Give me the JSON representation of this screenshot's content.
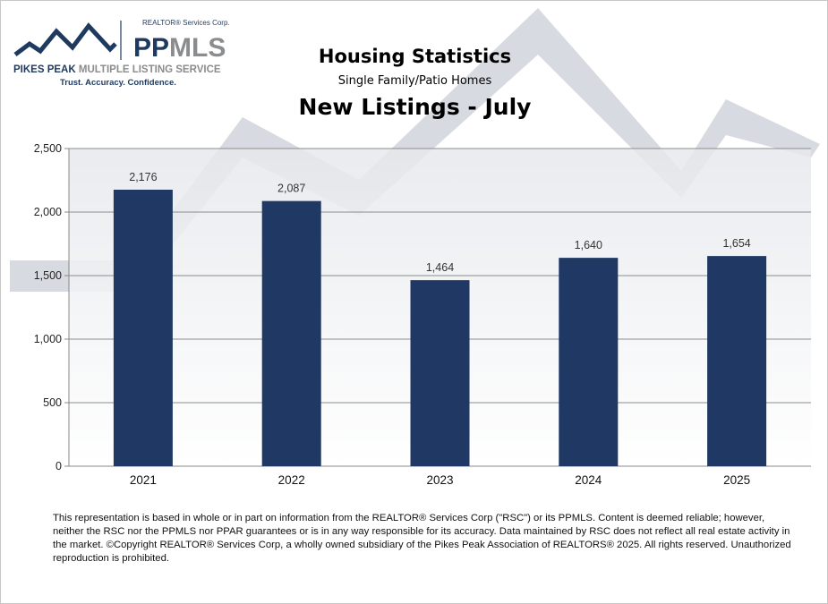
{
  "logo": {
    "brand": "PPMLS",
    "top_line": "REALTOR® Services Corp.",
    "org_name_bold": "PIKES PEAK",
    "org_name_rest": "MULTIPLE LISTING SERVICE",
    "tagline": "Trust. Accuracy. Confidence.",
    "colors": {
      "navy": "#1f3a5f",
      "gray": "#8a8c8e"
    }
  },
  "header": {
    "title": "Housing Statistics",
    "subtitle": "Single Family/Patio Homes"
  },
  "chart_data": {
    "type": "bar",
    "title": "New Listings - July",
    "categories": [
      "2021",
      "2022",
      "2023",
      "2024",
      "2025"
    ],
    "values": [
      2176,
      2087,
      1464,
      1640,
      1654
    ],
    "data_labels": [
      "2,176",
      "2,087",
      "1,464",
      "1,640",
      "1,654"
    ],
    "ylim": [
      0,
      2500
    ],
    "yticks": [
      0,
      500,
      1000,
      1500,
      2000,
      2500
    ],
    "ytick_labels": [
      "0",
      "500",
      "1,000",
      "1,500",
      "2,000",
      "2,500"
    ],
    "grid": true,
    "bar_color": "#1f3864",
    "xlabel": "",
    "ylabel": ""
  },
  "footer": {
    "disclaimer": "This representation is based in whole or in part on information from the REALTOR® Services Corp (\"RSC\") or its PPMLS. Content is deemed reliable;  however, neither the RSC nor the PPMLS nor PPAR guarantees or is in any way responsible for its accuracy. Data maintained by RSC does not reflect all real estate activity in the market. ©Copyright REALTOR® Services Corp, a wholly owned subsidiary of the Pikes Peak Association of REALTORS® 2025.  All rights reserved. Unauthorized reproduction is prohibited."
  }
}
